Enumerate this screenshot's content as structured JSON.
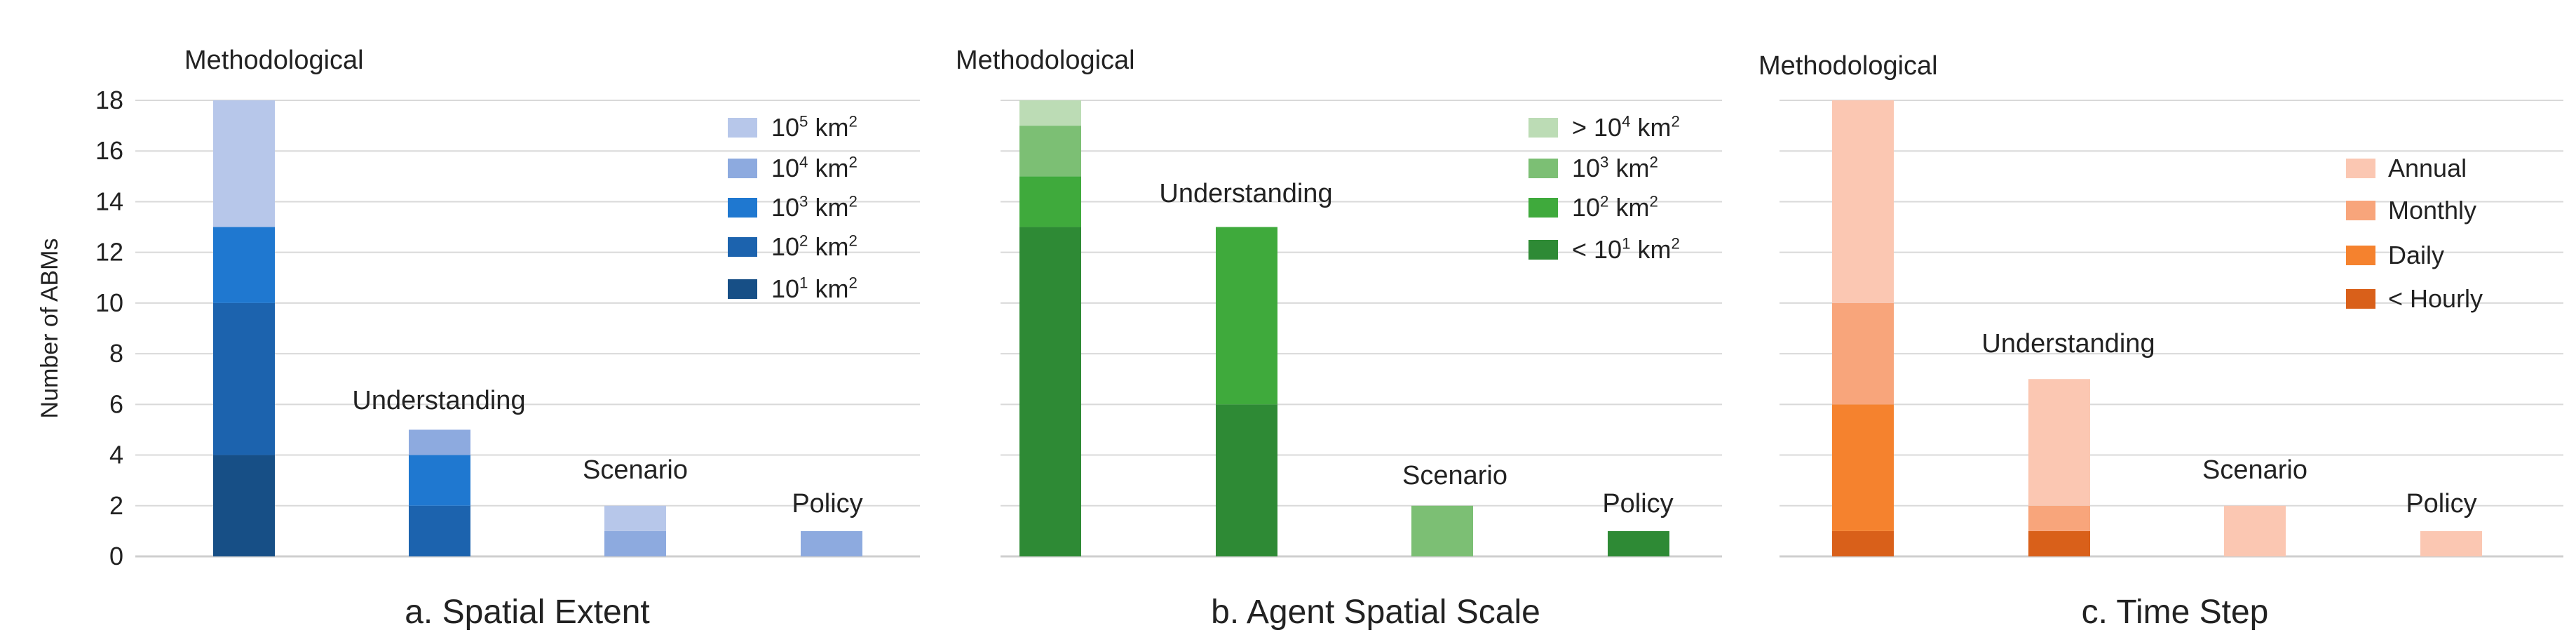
{
  "ylabel": "Number of ABMs",
  "chart_data": [
    {
      "type": "bar",
      "stacked": true,
      "title": "a. Spatial Extent",
      "ylabel": "Number of ABMs",
      "ylim": [
        0,
        18
      ],
      "yticks": [
        "0",
        "2",
        "4",
        "6",
        "8",
        "10",
        "12",
        "14",
        "16",
        "18"
      ],
      "grid": true,
      "legend_position": "right",
      "categories": [
        "Methodological",
        "Understanding",
        "Scenario",
        "Policy"
      ],
      "series": [
        {
          "name": "10",
          "sup": "1",
          "unit": " km",
          "unit_sup": "2",
          "color": "#174f86",
          "values": [
            4,
            0,
            0,
            0
          ]
        },
        {
          "name": "10",
          "sup": "2",
          "unit": " km",
          "unit_sup": "2",
          "color": "#1c63ae",
          "values": [
            6,
            2,
            0,
            0
          ]
        },
        {
          "name": "10",
          "sup": "3",
          "unit": " km",
          "unit_sup": "2",
          "color": "#1f78d0",
          "values": [
            3,
            2,
            0,
            0
          ]
        },
        {
          "name": "10",
          "sup": "4",
          "unit": " km",
          "unit_sup": "2",
          "color": "#8daadf",
          "values": [
            0,
            1,
            1,
            1
          ]
        },
        {
          "name": "10",
          "sup": "5",
          "unit": " km",
          "unit_sup": "2",
          "color": "#b7c7ea",
          "values": [
            5,
            0,
            1,
            0
          ]
        }
      ]
    },
    {
      "type": "bar",
      "stacked": true,
      "title": "b. Agent Spatial Scale",
      "ylim": [
        0,
        18
      ],
      "grid": true,
      "legend_position": "right",
      "categories": [
        "Methodological",
        "Understanding",
        "Scenario",
        "Policy"
      ],
      "series": [
        {
          "name": "< 10",
          "sup": "1",
          "unit": " km",
          "unit_sup": "2",
          "color": "#2e8a35",
          "values": [
            13,
            6,
            0,
            1
          ]
        },
        {
          "name": "10",
          "sup": "2",
          "unit": " km",
          "unit_sup": "2",
          "color": "#3faa3c",
          "values": [
            2,
            7,
            0,
            0
          ]
        },
        {
          "name": "10",
          "sup": "3",
          "unit": " km",
          "unit_sup": "2",
          "color": "#7cbf74",
          "values": [
            2,
            0,
            2,
            0
          ]
        },
        {
          "name": "> 10",
          "sup": "4",
          "unit": " km",
          "unit_sup": "2",
          "color": "#bcdcb5",
          "values": [
            1,
            0,
            0,
            0
          ]
        }
      ]
    },
    {
      "type": "bar",
      "stacked": true,
      "title": "c. Time Step",
      "ylim": [
        0,
        18
      ],
      "grid": true,
      "legend_position": "right",
      "categories": [
        "Methodological",
        "Understanding",
        "Scenario",
        "Policy"
      ],
      "series": [
        {
          "name": "< Hourly",
          "color": "#d9601a",
          "values": [
            1,
            1,
            0,
            0
          ]
        },
        {
          "name": "Daily",
          "color": "#f5822e",
          "values": [
            5,
            0,
            0,
            0
          ]
        },
        {
          "name": "Monthly",
          "color": "#f8a57b",
          "values": [
            4,
            1,
            0,
            0
          ]
        },
        {
          "name": "Annual",
          "color": "#fbc7b2",
          "values": [
            8,
            5,
            2,
            1
          ]
        }
      ]
    }
  ]
}
